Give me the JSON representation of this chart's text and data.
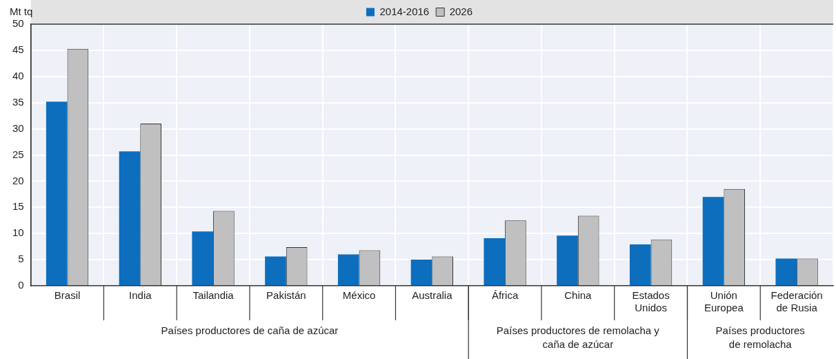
{
  "chart_data": {
    "type": "bar",
    "ylabel": "Mt tq",
    "categories": [
      "Brasil",
      "India",
      "Tailandia",
      "Pakistán",
      "México",
      "Australia",
      "África",
      "China",
      "Estados Unidos",
      "Unión Europea",
      "Federación de Rusia"
    ],
    "series": [
      {
        "name": "2014-2016",
        "color": "#0e6ebe",
        "values": [
          35.2,
          25.7,
          10.4,
          5.6,
          6.0,
          5.0,
          9.1,
          9.6,
          7.9,
          17.0,
          5.2
        ]
      },
      {
        "name": "2026",
        "color": "#c0c0c0",
        "values": [
          45.3,
          31.0,
          14.3,
          7.4,
          6.8,
          5.6,
          12.5,
          13.4,
          8.8,
          18.5,
          5.2
        ]
      }
    ],
    "ylim": [
      0,
      50
    ],
    "yticks": [
      0,
      5,
      10,
      15,
      20,
      25,
      30,
      35,
      40,
      45,
      50
    ],
    "grid": true,
    "legend": "top",
    "annotations": [
      "Países productores de caña de azúcar",
      "Países productores de remolacha y caña de azúcar",
      "Países productores de remolacha"
    ]
  }
}
